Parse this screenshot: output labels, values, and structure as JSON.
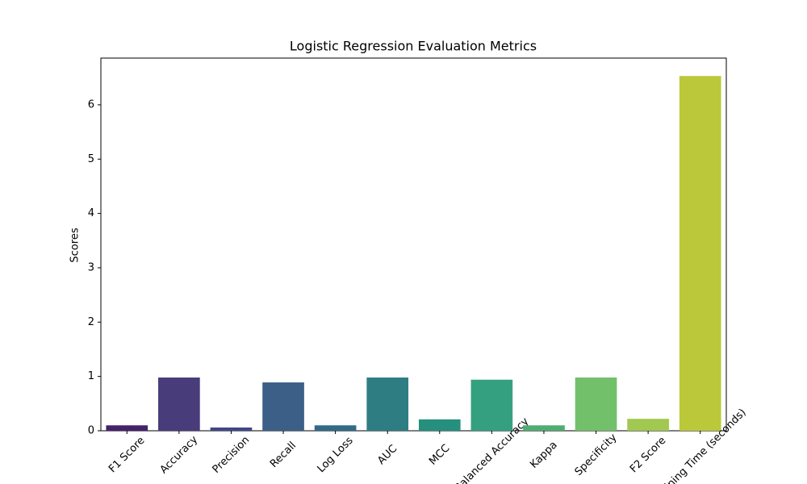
{
  "chart_data": {
    "type": "bar",
    "title": "Logistic Regression Evaluation Metrics",
    "y_label": "Scores",
    "categories": [
      "F1 Score",
      "Accuracy",
      "Precision",
      "Recall",
      "Log Loss",
      "AUC",
      "MCC",
      "Balanced Accuracy",
      "Kappa",
      "Specificity",
      "F2 Score",
      "Training Time (seconds)"
    ],
    "values": [
      0.1,
      0.98,
      0.06,
      0.89,
      0.1,
      0.98,
      0.21,
      0.94,
      0.1,
      0.98,
      0.22,
      6.53
    ],
    "colors": [
      "#46216b",
      "#483c7a",
      "#404788",
      "#3c5f87",
      "#326b88",
      "#2e7d82",
      "#26907f",
      "#35a07f",
      "#4fad72",
      "#72c06a",
      "#a1c850",
      "#bbc839"
    ],
    "ylim": [
      0,
      6.86
    ],
    "yticks": [
      0,
      1,
      2,
      3,
      4,
      5,
      6
    ]
  }
}
